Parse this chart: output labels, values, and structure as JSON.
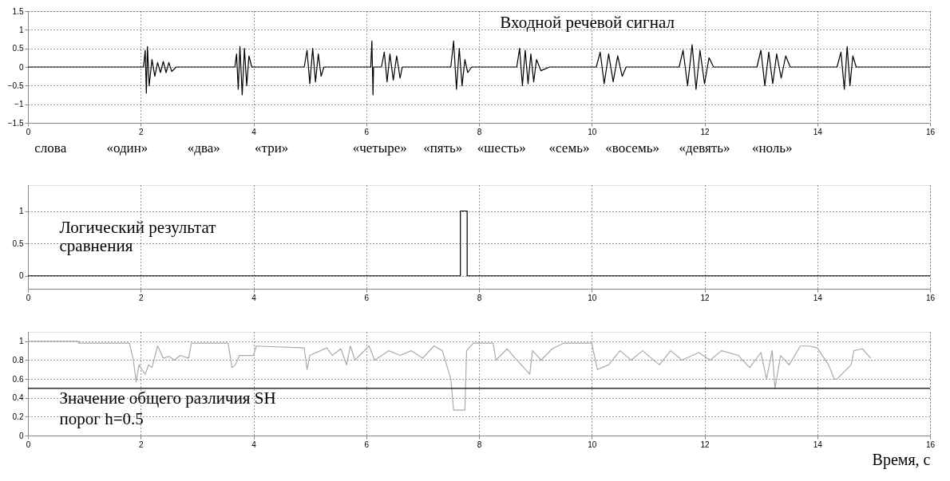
{
  "chart_data": [
    {
      "type": "line",
      "xlim": [
        0,
        16
      ],
      "ylim": [
        -1.5,
        1.5
      ],
      "xticks": [
        0,
        2,
        4,
        6,
        8,
        10,
        12,
        14,
        16
      ],
      "yticks": [
        -1.5,
        -1,
        -0.5,
        0,
        0.5,
        1,
        1.5
      ],
      "grid": true,
      "series": [
        {
          "color": "#000000",
          "x": [
            0,
            2.05,
            2.08,
            2.1,
            2.12,
            2.15,
            2.2,
            2.25,
            2.3,
            2.35,
            2.4,
            2.45,
            2.5,
            2.55,
            2.63,
            3.67,
            3.7,
            3.73,
            3.76,
            3.8,
            3.84,
            3.88,
            3.92,
            3.97,
            4.9,
            4.95,
            5.0,
            5.05,
            5.1,
            5.15,
            5.2,
            5.25,
            6.08,
            6.1,
            6.12,
            6.13,
            6.27,
            6.32,
            6.37,
            6.42,
            6.48,
            6.54,
            6.6,
            6.64,
            7.5,
            7.55,
            7.6,
            7.65,
            7.7,
            7.75,
            7.8,
            7.87,
            8.67,
            8.72,
            8.77,
            8.82,
            8.87,
            8.92,
            8.97,
            9.02,
            9.1,
            9.25,
            10.08,
            10.15,
            10.22,
            10.3,
            10.38,
            10.46,
            10.54,
            10.61,
            11.55,
            11.62,
            11.7,
            11.78,
            11.85,
            11.92,
            12.0,
            12.08,
            12.16,
            12.93,
            13.0,
            13.07,
            13.14,
            13.21,
            13.28,
            13.36,
            13.44,
            13.52,
            14.35,
            14.42,
            14.48,
            14.53,
            14.58,
            14.63,
            14.69,
            16
          ],
          "values": [
            0,
            0,
            0.45,
            -0.7,
            0.55,
            -0.5,
            0.2,
            -0.25,
            0.12,
            -0.15,
            0.15,
            -0.15,
            0.12,
            -0.12,
            0,
            0,
            0.35,
            -0.6,
            0.55,
            -0.75,
            0.5,
            -0.5,
            0.3,
            0,
            0,
            0.45,
            -0.45,
            0.5,
            -0.4,
            0.35,
            -0.25,
            0,
            0,
            0.7,
            -0.75,
            0,
            0,
            0.4,
            -0.4,
            0.35,
            -0.35,
            0.3,
            -0.3,
            0,
            0,
            0.7,
            -0.6,
            0.5,
            -0.5,
            0.2,
            -0.15,
            0,
            0,
            0.5,
            -0.5,
            0.45,
            -0.45,
            0.35,
            -0.4,
            0.2,
            -0.1,
            0,
            0,
            0.4,
            -0.45,
            0.35,
            -0.4,
            0.3,
            -0.25,
            0,
            0,
            0.45,
            -0.5,
            0.6,
            -0.6,
            0.45,
            -0.45,
            0.25,
            0,
            0,
            0.45,
            -0.5,
            0.4,
            -0.45,
            0.35,
            -0.3,
            0.3,
            0,
            0,
            0.4,
            -0.6,
            0.55,
            -0.5,
            0.3,
            0,
            0
          ]
        }
      ],
      "annotations": [
        "Входной речевой сигнал",
        "слова",
        "«один»",
        "«два»",
        "«три»",
        "«четыре»",
        "«пять»",
        "«шесть»",
        "«семь»",
        "«восемь»",
        "«девять»",
        "«ноль»"
      ]
    },
    {
      "type": "step",
      "xlim": [
        0,
        16
      ],
      "ylim": [
        -0.2,
        1.4
      ],
      "xticks": [
        0,
        2,
        4,
        6,
        8,
        10,
        12,
        14,
        16
      ],
      "yticks": [
        0,
        0.5,
        1
      ],
      "grid": true,
      "series": [
        {
          "color": "#000000",
          "x": [
            0,
            7.67,
            7.79,
            16
          ],
          "values": [
            0,
            1,
            0,
            0
          ]
        }
      ],
      "annotations": [
        "Логический результат\nсравнения"
      ]
    },
    {
      "type": "line",
      "xlim": [
        0,
        16
      ],
      "ylim": [
        0,
        1.1
      ],
      "xticks": [
        0,
        2,
        4,
        6,
        8,
        10,
        12,
        14,
        16
      ],
      "yticks": [
        0,
        0.2,
        0.4,
        0.6,
        0.8,
        1
      ],
      "grid": true,
      "xlabel": "Время, с",
      "series": [
        {
          "color": "#aaaaaa",
          "x": [
            0,
            0.9,
            0.9,
            1.8,
            1.87,
            1.92,
            1.97,
            2.02,
            2.08,
            2.14,
            2.2,
            2.3,
            2.4,
            2.5,
            2.6,
            2.7,
            2.85,
            2.9,
            3.55,
            3.62,
            3.68,
            3.75,
            4.0,
            4.05,
            4.9,
            4.95,
            5.0,
            5.3,
            5.4,
            5.55,
            5.65,
            5.72,
            5.8,
            6.05,
            6.15,
            6.4,
            6.6,
            6.8,
            7.0,
            7.2,
            7.35,
            7.5,
            7.55,
            7.6,
            7.75,
            7.78,
            7.9,
            8.25,
            8.3,
            8.5,
            8.6,
            8.9,
            8.95,
            9.1,
            9.3,
            9.5,
            10.0,
            10.1,
            10.3,
            10.5,
            10.7,
            10.9,
            11.2,
            11.4,
            11.6,
            11.9,
            12.1,
            12.3,
            12.6,
            12.8,
            13.0,
            13.1,
            13.2,
            13.25,
            13.35,
            13.5,
            13.7,
            13.85,
            14.0,
            14.2,
            14.3,
            14.35,
            14.6,
            14.65,
            14.8,
            14.95
          ],
          "values": [
            1,
            1,
            0.98,
            0.98,
            0.8,
            0.57,
            0.75,
            0.7,
            0.65,
            0.75,
            0.72,
            0.95,
            0.82,
            0.84,
            0.8,
            0.85,
            0.82,
            0.98,
            0.98,
            0.72,
            0.75,
            0.85,
            0.85,
            0.95,
            0.93,
            0.7,
            0.85,
            0.93,
            0.85,
            0.92,
            0.75,
            0.95,
            0.8,
            0.95,
            0.8,
            0.9,
            0.85,
            0.9,
            0.82,
            0.95,
            0.9,
            0.6,
            0.27,
            0.27,
            0.27,
            0.9,
            0.98,
            0.98,
            0.8,
            0.92,
            0.85,
            0.65,
            0.9,
            0.8,
            0.92,
            0.98,
            0.98,
            0.7,
            0.75,
            0.9,
            0.8,
            0.9,
            0.75,
            0.9,
            0.8,
            0.88,
            0.8,
            0.9,
            0.85,
            0.72,
            0.88,
            0.6,
            0.9,
            0.5,
            0.85,
            0.75,
            0.95,
            0.95,
            0.93,
            0.75,
            0.6,
            0.6,
            0.75,
            0.9,
            0.92,
            0.82
          ]
        }
      ],
      "ref_lines": [
        {
          "axis": "y",
          "value": 0.5,
          "color": "#000000"
        }
      ],
      "annotations": [
        "Значение общего различия SH",
        "порог h=0.5"
      ]
    }
  ]
}
